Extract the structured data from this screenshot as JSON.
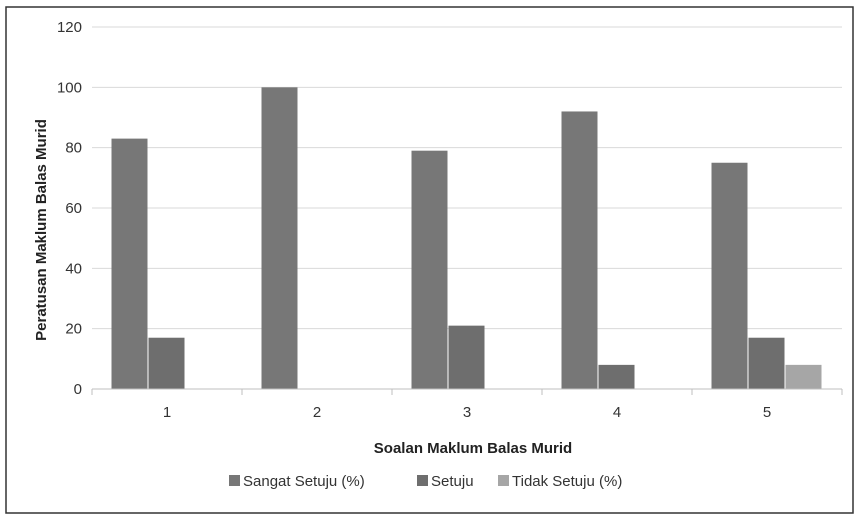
{
  "chart_data": {
    "type": "bar",
    "title": "",
    "xlabel": "Soalan Maklum Balas Murid",
    "ylabel": "Peratusan Maklum Balas Murid",
    "categories": [
      "1",
      "2",
      "3",
      "4",
      "5"
    ],
    "series": [
      {
        "name": "Sangat Setuju (%)",
        "values": [
          83,
          100,
          79,
          92,
          75
        ],
        "color": "#777777"
      },
      {
        "name": "Setuju",
        "values": [
          17,
          0,
          21,
          8,
          17
        ],
        "color": "#6e6e6e"
      },
      {
        "name": "Tidak Setuju (%)",
        "values": [
          0,
          0,
          0,
          0,
          8
        ],
        "color": "#a6a6a6"
      }
    ],
    "ylim": [
      0,
      120
    ],
    "yticks": [
      "0",
      "20",
      "40",
      "60",
      "80",
      "100",
      "120"
    ],
    "grid": true,
    "legend_position": "bottom"
  }
}
